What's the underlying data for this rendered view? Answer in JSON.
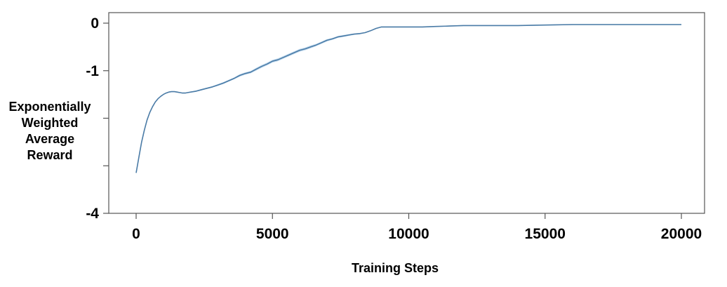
{
  "chart_data": {
    "type": "line",
    "title": "",
    "xlabel": "Training Steps",
    "ylabel": "Exponentially Weighted Average Reward",
    "ylabel_lines": [
      "Exponentially",
      "Weighted",
      "Average",
      "Reward"
    ],
    "xlim": [
      -1000,
      21000
    ],
    "ylim": [
      -4,
      0.05
    ],
    "x_ticks": [
      0,
      5000,
      10000,
      15000,
      20000
    ],
    "x_tick_labels": [
      "0",
      "5000",
      "10000",
      "15000",
      "20000"
    ],
    "y_ticks": [
      0,
      -1,
      -2,
      -3,
      -4
    ],
    "y_tick_labels": [
      "0",
      "-1",
      "",
      "",
      "-4"
    ],
    "grid": false,
    "line_color": "#4a7ba6",
    "band_color": "#b5d3ec",
    "series": [
      {
        "x": [
          0,
          100,
          200,
          300,
          400,
          500,
          600,
          700,
          800,
          900,
          1000,
          1100,
          1200,
          1300,
          1400,
          1500,
          1600,
          1700,
          1800,
          1900,
          2000,
          2200,
          2400,
          2600,
          2800,
          3000,
          3200,
          3400,
          3600,
          3800,
          4000,
          4200,
          4400,
          4600,
          4800,
          5000,
          5200,
          5400,
          5600,
          5800,
          6000,
          6200,
          6400,
          6600,
          6800,
          7000,
          7200,
          7400,
          7600,
          7800,
          8000,
          8200,
          8400,
          8600,
          8800,
          9000,
          9500,
          10000,
          10500,
          11000,
          11500,
          12000,
          12500,
          13000,
          14000,
          15000,
          16000,
          17000,
          18000,
          19000,
          20000
        ],
        "y": [
          -3.15,
          -2.82,
          -2.5,
          -2.25,
          -2.04,
          -1.88,
          -1.76,
          -1.66,
          -1.59,
          -1.54,
          -1.5,
          -1.47,
          -1.45,
          -1.44,
          -1.44,
          -1.45,
          -1.46,
          -1.47,
          -1.47,
          -1.46,
          -1.45,
          -1.43,
          -1.4,
          -1.37,
          -1.34,
          -1.3,
          -1.26,
          -1.21,
          -1.16,
          -1.1,
          -1.06,
          -1.03,
          -0.97,
          -0.91,
          -0.86,
          -0.8,
          -0.77,
          -0.72,
          -0.67,
          -0.62,
          -0.57,
          -0.54,
          -0.5,
          -0.46,
          -0.41,
          -0.36,
          -0.33,
          -0.29,
          -0.27,
          -0.25,
          -0.23,
          -0.22,
          -0.2,
          -0.16,
          -0.11,
          -0.08,
          -0.08,
          -0.08,
          -0.08,
          -0.07,
          -0.06,
          -0.05,
          -0.05,
          -0.05,
          -0.05,
          -0.04,
          -0.03,
          -0.03,
          -0.03,
          -0.03,
          -0.03
        ],
        "band": [
          0.0,
          0.01,
          0.01,
          0.01,
          0.01,
          0.01,
          0.01,
          0.01,
          0.01,
          0.01,
          0.01,
          0.01,
          0.01,
          0.01,
          0.01,
          0.01,
          0.01,
          0.01,
          0.01,
          0.01,
          0.01,
          0.015,
          0.015,
          0.015,
          0.015,
          0.02,
          0.02,
          0.02,
          0.02,
          0.025,
          0.025,
          0.025,
          0.03,
          0.03,
          0.03,
          0.03,
          0.03,
          0.03,
          0.03,
          0.03,
          0.03,
          0.03,
          0.03,
          0.025,
          0.025,
          0.025,
          0.02,
          0.02,
          0.02,
          0.02,
          0.015,
          0.015,
          0.01,
          0.01,
          0.01,
          0.01,
          0.01,
          0.01,
          0.01,
          0.01,
          0.01,
          0.01,
          0.01,
          0.01,
          0.01,
          0.01,
          0.01,
          0.01,
          0.01,
          0.01,
          0.01
        ]
      }
    ]
  }
}
